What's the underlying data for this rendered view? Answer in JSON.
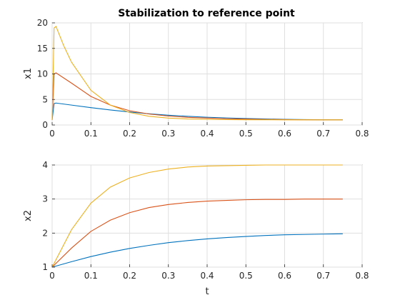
{
  "chart_data": [
    {
      "type": "line",
      "title": "Stabilization to reference point",
      "xlabel": "",
      "ylabel": "x1",
      "xlim": [
        0,
        0.8
      ],
      "ylim": [
        0,
        20
      ],
      "xticks": [
        "0",
        "0.1",
        "0.2",
        "0.3",
        "0.4",
        "0.5",
        "0.6",
        "0.7",
        "0.8"
      ],
      "yticks": [
        "0",
        "5",
        "10",
        "15",
        "20"
      ],
      "grid": true,
      "series": [
        {
          "color": "#0072bd",
          "x": [
            0,
            0.005,
            0.01,
            0.05,
            0.1,
            0.15,
            0.2,
            0.25,
            0.3,
            0.35,
            0.4,
            0.45,
            0.5,
            0.55,
            0.6,
            0.65,
            0.7,
            0.75
          ],
          "values": [
            1.0,
            4.2,
            4.3,
            3.9,
            3.4,
            2.95,
            2.55,
            2.2,
            1.92,
            1.7,
            1.52,
            1.38,
            1.27,
            1.18,
            1.11,
            1.06,
            1.02,
            1.0
          ]
        },
        {
          "color": "#d95319",
          "x": [
            0,
            0.005,
            0.01,
            0.05,
            0.1,
            0.15,
            0.2,
            0.25,
            0.3,
            0.35,
            0.4,
            0.45,
            0.5,
            0.55,
            0.6,
            0.65,
            0.7,
            0.75
          ],
          "values": [
            1.0,
            10.0,
            10.2,
            8.2,
            5.6,
            3.9,
            2.8,
            2.15,
            1.75,
            1.5,
            1.35,
            1.24,
            1.16,
            1.1,
            1.06,
            1.03,
            1.01,
            1.0
          ]
        },
        {
          "color": "#edb120",
          "x": [
            0,
            0.005,
            0.01,
            0.03,
            0.05,
            0.1,
            0.15,
            0.2,
            0.25,
            0.3,
            0.35,
            0.4,
            0.45,
            0.5,
            0.55,
            0.6,
            0.65,
            0.7,
            0.75
          ],
          "values": [
            1.0,
            19.0,
            19.3,
            15.5,
            12.3,
            6.8,
            3.9,
            2.45,
            1.7,
            1.35,
            1.18,
            1.1,
            1.05,
            1.03,
            1.02,
            1.01,
            1.0,
            1.0,
            1.0
          ]
        }
      ]
    },
    {
      "type": "line",
      "title": "",
      "xlabel": "t",
      "ylabel": "x2",
      "xlim": [
        0,
        0.8
      ],
      "ylim": [
        1,
        4
      ],
      "xticks": [
        "0",
        "0.1",
        "0.2",
        "0.3",
        "0.4",
        "0.5",
        "0.6",
        "0.7",
        "0.8"
      ],
      "yticks": [
        "1",
        "2",
        "3",
        "4"
      ],
      "grid": true,
      "series": [
        {
          "color": "#0072bd",
          "x": [
            0,
            0.05,
            0.1,
            0.15,
            0.2,
            0.25,
            0.3,
            0.35,
            0.4,
            0.45,
            0.5,
            0.55,
            0.6,
            0.65,
            0.7,
            0.75
          ],
          "values": [
            1.0,
            1.16,
            1.31,
            1.44,
            1.55,
            1.64,
            1.72,
            1.78,
            1.83,
            1.87,
            1.9,
            1.93,
            1.95,
            1.96,
            1.97,
            1.98
          ]
        },
        {
          "color": "#d95319",
          "x": [
            0,
            0.05,
            0.1,
            0.15,
            0.2,
            0.25,
            0.3,
            0.35,
            0.4,
            0.45,
            0.5,
            0.55,
            0.6,
            0.65,
            0.7,
            0.75
          ],
          "values": [
            1.0,
            1.56,
            2.05,
            2.38,
            2.6,
            2.75,
            2.84,
            2.9,
            2.94,
            2.96,
            2.98,
            2.99,
            2.99,
            3.0,
            3.0,
            3.0
          ]
        },
        {
          "color": "#edb120",
          "x": [
            0,
            0.05,
            0.1,
            0.15,
            0.2,
            0.25,
            0.3,
            0.35,
            0.4,
            0.45,
            0.5,
            0.55,
            0.6,
            0.65,
            0.7,
            0.75
          ],
          "values": [
            1.0,
            2.1,
            2.88,
            3.35,
            3.62,
            3.78,
            3.88,
            3.94,
            3.97,
            3.98,
            3.99,
            4.0,
            4.0,
            4.0,
            4.0,
            4.0
          ]
        }
      ]
    }
  ]
}
